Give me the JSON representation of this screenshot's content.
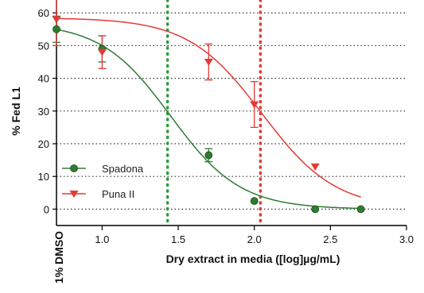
{
  "chart_data": {
    "type": "scatter",
    "xlabel": "Dry extract in media ([log]µg/mL)",
    "ylabel": "% Fed L1",
    "control_label": "1% DMSO",
    "xlim": [
      0.7,
      3.0
    ],
    "ylim": [
      -5,
      62
    ],
    "xticks": [
      "1.0",
      "1.5",
      "2.0",
      "2.5",
      "3.0"
    ],
    "xtick_values": [
      1.0,
      1.5,
      2.0,
      2.5,
      3.0
    ],
    "yticks": [
      "0",
      "10",
      "20",
      "30",
      "40",
      "50",
      "60"
    ],
    "ytick_values": [
      0,
      10,
      20,
      30,
      40,
      50,
      60
    ],
    "grid": "horizontal dotted",
    "legend_position": "bottom-left",
    "series": [
      {
        "name": "Spadona",
        "color": "#2e7d32",
        "marker": "circle",
        "x": [
          0.7,
          1.0,
          1.7,
          2.0,
          2.4,
          2.7
        ],
        "y": [
          55,
          49,
          16.5,
          2.5,
          0,
          0
        ],
        "err": [
          4,
          4,
          2,
          0,
          0,
          0
        ],
        "fit": {
          "top": 57,
          "bottom": 0,
          "log_ec50": 1.45,
          "hill": 1.9
        }
      },
      {
        "name": "Puna II",
        "color": "#e53935",
        "marker": "triangle-down",
        "x": [
          0.7,
          1.0,
          1.7,
          2.0,
          2.4
        ],
        "y": [
          58,
          48,
          45,
          32,
          13
        ],
        "err": [
          8,
          5,
          5.5,
          7,
          0
        ],
        "fit": {
          "top": 58.5,
          "bottom": 0,
          "log_ec50": 2.05,
          "hill": 1.8
        }
      }
    ],
    "vlines": [
      {
        "x": 1.43,
        "color": "#2e9a3e",
        "style": "dotted"
      },
      {
        "x": 2.04,
        "color": "#e53935",
        "style": "dotted"
      }
    ]
  }
}
